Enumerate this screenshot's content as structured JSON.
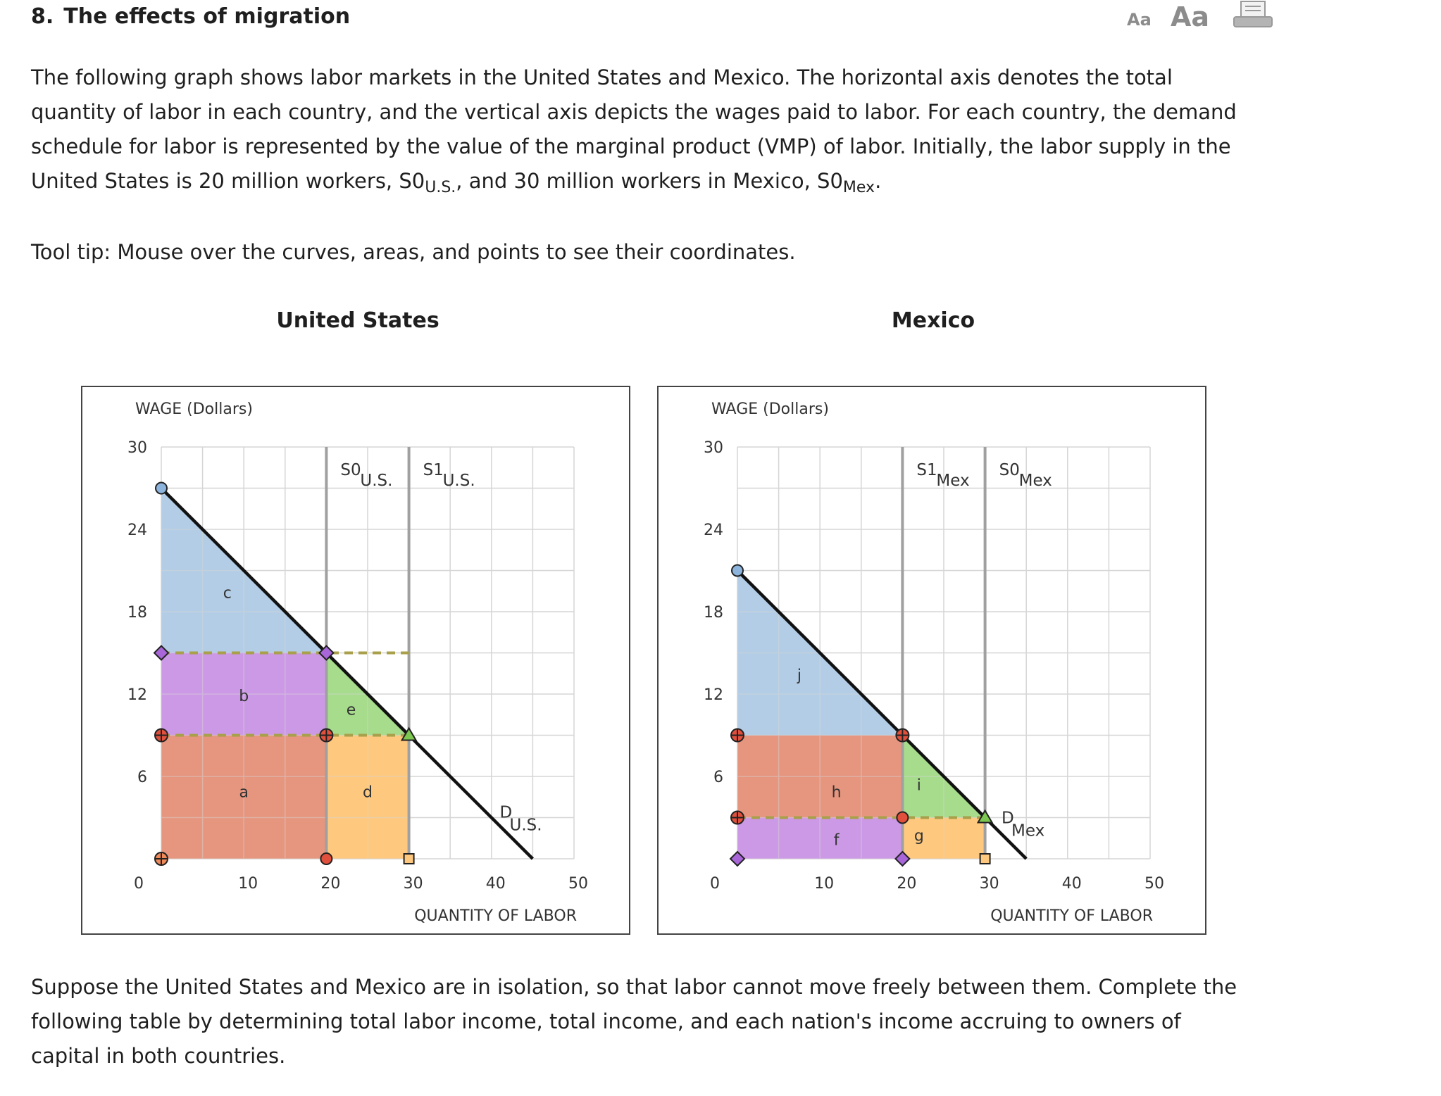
{
  "question": {
    "number": "8.",
    "title": "The effects of migration"
  },
  "toolbar": {
    "font_small_label": "Aa",
    "font_large_label": "Aa",
    "print_icon": "print-icon"
  },
  "intro": {
    "line1": "The following graph shows labor markets in the United States and Mexico. The horizontal axis denotes the total",
    "line2": "quantity of labor in each country, and the vertical axis depicts the wages paid to labor. For each country, the demand",
    "line3": "schedule for labor is represented by the value of the marginal product (VMP) of labor. Initially, the labor supply in the",
    "line4_a": "United States is 20 million workers, S0",
    "line4_sub1": "U.S.",
    "line4_b": ", and 30 million workers in Mexico, S0",
    "line4_sub2": "Mex",
    "line4_c": "."
  },
  "tooltip_text": "Tool tip: Mouse over the curves, areas, and points to see their coordinates.",
  "outro": {
    "line1": "Suppose the United States and Mexico are in isolation, so that labor cannot move freely between them. Complete the",
    "line2": "following table by determining total labor income, total income, and each nation's income accruing to owners of",
    "line3": "capital in both countries."
  },
  "chart_data": [
    {
      "type": "line",
      "title": "United States",
      "ylabel": "WAGE (Dollars)",
      "xlabel": "QUANTITY OF LABOR",
      "xlim": [
        0,
        50
      ],
      "ylim": [
        0,
        30
      ],
      "x_ticks": [
        0,
        10,
        20,
        30,
        40,
        50
      ],
      "y_ticks": [
        6,
        12,
        18,
        24,
        30
      ],
      "y_zero_label": "0",
      "grid": true,
      "demand": {
        "name": "D",
        "sub": "U.S.",
        "points": [
          [
            0,
            27
          ],
          [
            45,
            0
          ]
        ],
        "label_at": [
          41,
          3
        ]
      },
      "supplies": [
        {
          "name": "S0",
          "sub": "U.S.",
          "x": 20
        },
        {
          "name": "S1",
          "sub": "U.S.",
          "x": 30
        }
      ],
      "wage_lines": [
        15,
        9
      ],
      "areas": [
        {
          "label": "c",
          "color": "#b3cde6",
          "polygon": [
            [
              0,
              27
            ],
            [
              20,
              15
            ],
            [
              0,
              15
            ]
          ],
          "label_at": [
            8,
            19
          ]
        },
        {
          "label": "b",
          "color": "#cc99e6",
          "polygon": [
            [
              0,
              15
            ],
            [
              20,
              15
            ],
            [
              20,
              9
            ],
            [
              0,
              9
            ]
          ],
          "label_at": [
            10,
            11.5
          ]
        },
        {
          "label": "e",
          "color": "#a6dc8c",
          "polygon": [
            [
              20,
              15
            ],
            [
              30,
              9
            ],
            [
              20,
              9
            ]
          ],
          "label_at": [
            23,
            10.5
          ]
        },
        {
          "label": "a",
          "color": "#e6967e",
          "polygon": [
            [
              0,
              9
            ],
            [
              20,
              9
            ],
            [
              20,
              0
            ],
            [
              0,
              0
            ]
          ],
          "label_at": [
            10,
            4.5
          ]
        },
        {
          "label": "d",
          "color": "#fec97f",
          "polygon": [
            [
              20,
              9
            ],
            [
              30,
              9
            ],
            [
              30,
              0
            ],
            [
              20,
              0
            ]
          ],
          "label_at": [
            25,
            4.5
          ]
        }
      ],
      "points": [
        {
          "x": 0,
          "y": 27,
          "shape": "circle",
          "color": "#8cb4dc"
        },
        {
          "x": 0,
          "y": 15,
          "shape": "diamond",
          "color": "#a866d8"
        },
        {
          "x": 20,
          "y": 15,
          "shape": "diamond",
          "color": "#a866d8"
        },
        {
          "x": 0,
          "y": 9,
          "shape": "cross",
          "color": "#e0503c"
        },
        {
          "x": 20,
          "y": 9,
          "shape": "cross",
          "color": "#e0503c"
        },
        {
          "x": 30,
          "y": 9,
          "shape": "triangle",
          "color": "#7cc850"
        },
        {
          "x": 0,
          "y": 0,
          "shape": "cross",
          "color": "#f08a5a"
        },
        {
          "x": 20,
          "y": 0,
          "shape": "circle",
          "color": "#e0503c"
        },
        {
          "x": 30,
          "y": 0,
          "shape": "square",
          "color": "#fec97f"
        }
      ]
    },
    {
      "type": "line",
      "title": "Mexico",
      "ylabel": "WAGE (Dollars)",
      "xlabel": "QUANTITY OF LABOR",
      "xlim": [
        0,
        50
      ],
      "ylim": [
        0,
        30
      ],
      "x_ticks": [
        0,
        10,
        20,
        30,
        40,
        50
      ],
      "y_ticks": [
        6,
        12,
        18,
        24,
        30
      ],
      "y_zero_label": "0",
      "grid": true,
      "demand": {
        "name": "D",
        "sub": "Mex",
        "points": [
          [
            0,
            21
          ],
          [
            35,
            0
          ]
        ],
        "label_at": [
          32,
          2.6
        ]
      },
      "supplies": [
        {
          "name": "S1",
          "sub": "Mex",
          "x": 20
        },
        {
          "name": "S0",
          "sub": "Mex",
          "x": 30
        }
      ],
      "wage_lines": [
        3
      ],
      "areas": [
        {
          "label": "j",
          "color": "#b3cde6",
          "polygon": [
            [
              0,
              21
            ],
            [
              20,
              9
            ],
            [
              0,
              9
            ]
          ],
          "label_at": [
            7.5,
            13
          ]
        },
        {
          "label": "h",
          "color": "#e6967e",
          "polygon": [
            [
              0,
              9
            ],
            [
              20,
              9
            ],
            [
              20,
              3
            ],
            [
              0,
              3
            ]
          ],
          "label_at": [
            12,
            4.5
          ]
        },
        {
          "label": "i",
          "color": "#a6dc8c",
          "polygon": [
            [
              20,
              9
            ],
            [
              30,
              3
            ],
            [
              20,
              3
            ]
          ],
          "label_at": [
            22,
            5
          ]
        },
        {
          "label": "f",
          "color": "#cc99e6",
          "polygon": [
            [
              0,
              3
            ],
            [
              20,
              3
            ],
            [
              20,
              0
            ],
            [
              0,
              0
            ]
          ],
          "label_at": [
            12,
            1
          ]
        },
        {
          "label": "g",
          "color": "#fec97f",
          "polygon": [
            [
              20,
              3
            ],
            [
              30,
              3
            ],
            [
              30,
              0
            ],
            [
              20,
              0
            ]
          ],
          "label_at": [
            22,
            1.3
          ]
        }
      ],
      "points": [
        {
          "x": 0,
          "y": 21,
          "shape": "circle",
          "color": "#8cb4dc"
        },
        {
          "x": 0,
          "y": 9,
          "shape": "cross",
          "color": "#e0503c"
        },
        {
          "x": 20,
          "y": 9,
          "shape": "cross",
          "color": "#e0503c"
        },
        {
          "x": 0,
          "y": 3,
          "shape": "cross",
          "color": "#e0503c"
        },
        {
          "x": 20,
          "y": 3,
          "shape": "circle",
          "color": "#e0503c"
        },
        {
          "x": 30,
          "y": 3,
          "shape": "triangle",
          "color": "#7cc850"
        },
        {
          "x": 0,
          "y": 0,
          "shape": "diamond",
          "color": "#a866d8"
        },
        {
          "x": 20,
          "y": 0,
          "shape": "diamond",
          "color": "#a866d8"
        },
        {
          "x": 30,
          "y": 0,
          "shape": "square",
          "color": "#fec97f"
        }
      ]
    }
  ]
}
